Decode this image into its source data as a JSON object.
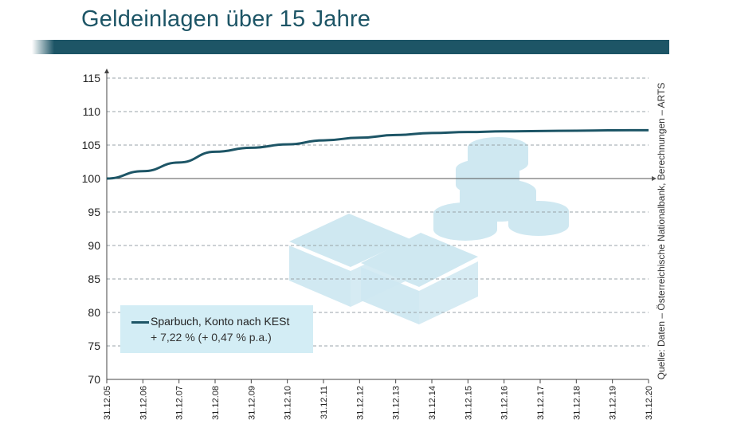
{
  "title": "Geldeinlagen über 15 Jahre",
  "source": "Quelle: Daten – Österreichische Nationalbank, Berechnungen – ARTS",
  "legend": {
    "name": "Sparbuch, Konto nach KESt",
    "value": "+ 7,22 % (+ 0,47 % p.a.)"
  },
  "colors": {
    "accent": "#1d5566",
    "line": "#1d5566",
    "legend_bg": "#d3edf5",
    "illustration": "#cfe8f1"
  },
  "illustration": "money-and-coins-illustration",
  "chart_data": {
    "type": "line",
    "title": "Geldeinlagen über 15 Jahre",
    "xlabel": "",
    "ylabel": "",
    "categories": [
      "31.12.05",
      "31.12.06",
      "31.12.07",
      "31.12.08",
      "31.12.09",
      "31.12.10",
      "31.12.11",
      "31.12.12",
      "31.12.13",
      "31.12.14",
      "31.12.15",
      "31.12.16",
      "31.12.17",
      "31.12.18",
      "31.12.19",
      "31.12.20"
    ],
    "yticks": [
      "70",
      "75",
      "80",
      "85",
      "90",
      "95",
      "100",
      "105",
      "110",
      "115"
    ],
    "ylim": [
      70,
      115
    ],
    "grid": true,
    "legend_position": "bottom-left",
    "series": [
      {
        "name": "Sparbuch, Konto nach KESt",
        "values": [
          100.0,
          101.1,
          102.4,
          104.0,
          104.6,
          105.1,
          105.7,
          106.1,
          106.5,
          106.8,
          106.95,
          107.05,
          107.1,
          107.15,
          107.2,
          107.22
        ]
      }
    ]
  }
}
